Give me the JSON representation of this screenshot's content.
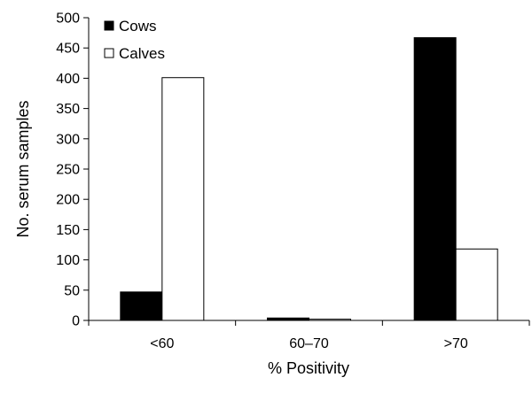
{
  "chart_data": {
    "type": "bar",
    "title": "",
    "xlabel": "% Positivity",
    "ylabel": "No. serum samples",
    "categories": [
      "<60",
      "60–70",
      ">70"
    ],
    "series": [
      {
        "name": "Cows",
        "values": [
          47,
          4,
          467
        ],
        "color": "#000000"
      },
      {
        "name": "Calves",
        "values": [
          401,
          2,
          118
        ],
        "color": "#ffffff"
      }
    ],
    "ylim": [
      0,
      500
    ],
    "yticks": [
      0,
      50,
      100,
      150,
      200,
      250,
      300,
      350,
      400,
      450,
      500
    ],
    "grid": false,
    "legend": "top-left"
  }
}
